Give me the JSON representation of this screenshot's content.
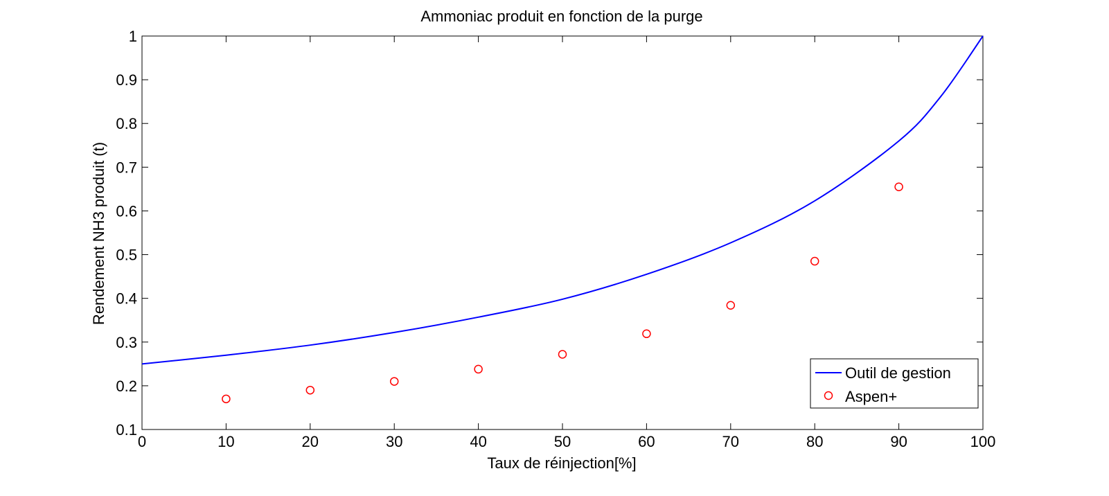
{
  "chart_data": {
    "type": "line",
    "title": "Ammoniac produit en fonction de la purge",
    "xlabel": "Taux de réinjection[%]",
    "ylabel": "Rendement NH3 produit (t)",
    "xlim": [
      0,
      100
    ],
    "ylim": [
      0.1,
      1
    ],
    "x_ticks": [
      "0",
      "10",
      "20",
      "30",
      "40",
      "50",
      "60",
      "70",
      "80",
      "90",
      "100"
    ],
    "y_ticks": [
      "0.1",
      "0.2",
      "0.3",
      "0.4",
      "0.5",
      "0.6",
      "0.7",
      "0.8",
      "0.9",
      "1"
    ],
    "grid": false,
    "legend_position": "bottom-right",
    "series": [
      {
        "name": "Outil de gestion",
        "kind": "line",
        "color": "#0000ff",
        "x": [
          0,
          10,
          20,
          30,
          40,
          50,
          60,
          70,
          80,
          90,
          95,
          100
        ],
        "y": [
          0.25,
          0.27,
          0.293,
          0.322,
          0.357,
          0.398,
          0.455,
          0.527,
          0.623,
          0.76,
          0.862,
          1.0
        ]
      },
      {
        "name": "Aspen+",
        "kind": "scatter",
        "marker": "circle",
        "color": "#ff0000",
        "x": [
          10,
          20,
          30,
          40,
          50,
          60,
          70,
          80,
          90
        ],
        "y": [
          0.17,
          0.19,
          0.21,
          0.238,
          0.272,
          0.319,
          0.384,
          0.485,
          0.655
        ]
      }
    ]
  }
}
